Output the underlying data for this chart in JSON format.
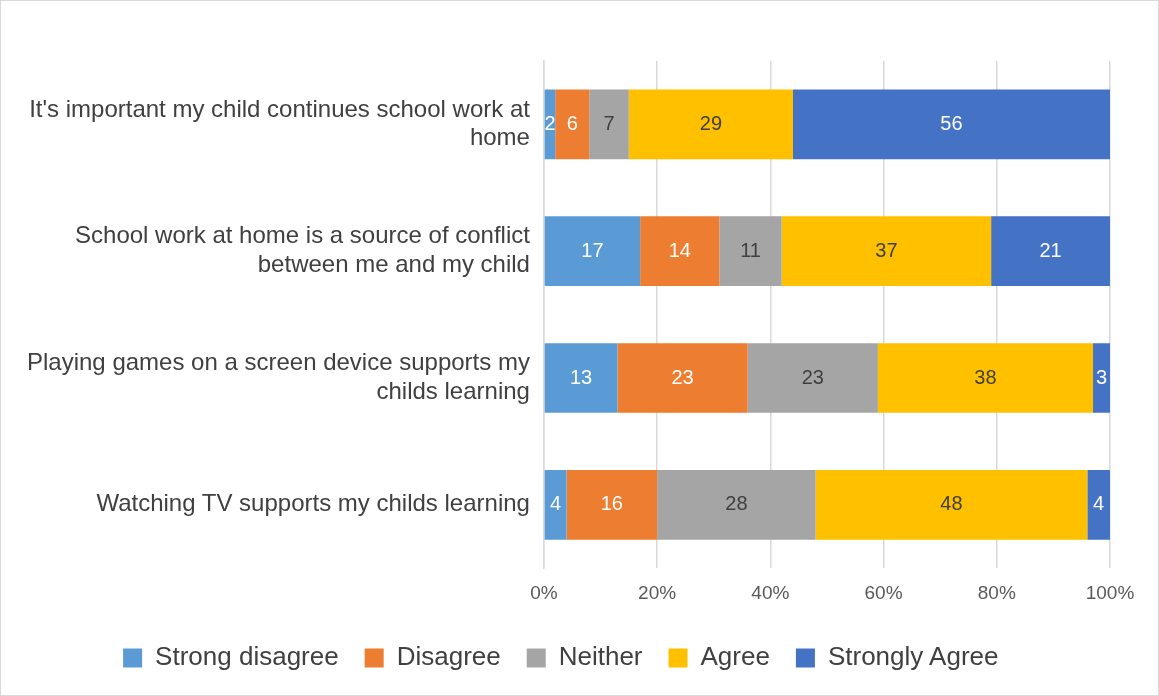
{
  "chart_data": {
    "type": "bar",
    "orientation": "horizontal",
    "stacked": true,
    "categories": [
      "It's important my child continues school work at home",
      "School work at home is a source of conflict between me and my child",
      "Playing games on a screen device supports my childs learning",
      "Watching TV supports my childs learning"
    ],
    "series": [
      {
        "name": "Strong disagree",
        "color": "#5b9bd5",
        "values": [
          2,
          17,
          13,
          4
        ]
      },
      {
        "name": "Disagree",
        "color": "#ed7d31",
        "values": [
          6,
          14,
          23,
          16
        ]
      },
      {
        "name": "Neither",
        "color": "#a5a5a5",
        "values": [
          7,
          11,
          23,
          28
        ]
      },
      {
        "name": "Agree",
        "color": "#ffc000",
        "values": [
          29,
          37,
          38,
          48
        ]
      },
      {
        "name": "Strongly Agree",
        "color": "#4472c4",
        "values": [
          56,
          21,
          3,
          4
        ]
      }
    ],
    "xlim": [
      0,
      100
    ],
    "xticks": [
      {
        "value": 0,
        "label": "0%"
      },
      {
        "value": 20,
        "label": "20%"
      },
      {
        "value": 40,
        "label": "40%"
      },
      {
        "value": 60,
        "label": "60%"
      },
      {
        "value": 80,
        "label": "80%"
      },
      {
        "value": 100,
        "label": "100%"
      }
    ],
    "grid": "x",
    "legend": "bottom",
    "data_labels": true
  }
}
